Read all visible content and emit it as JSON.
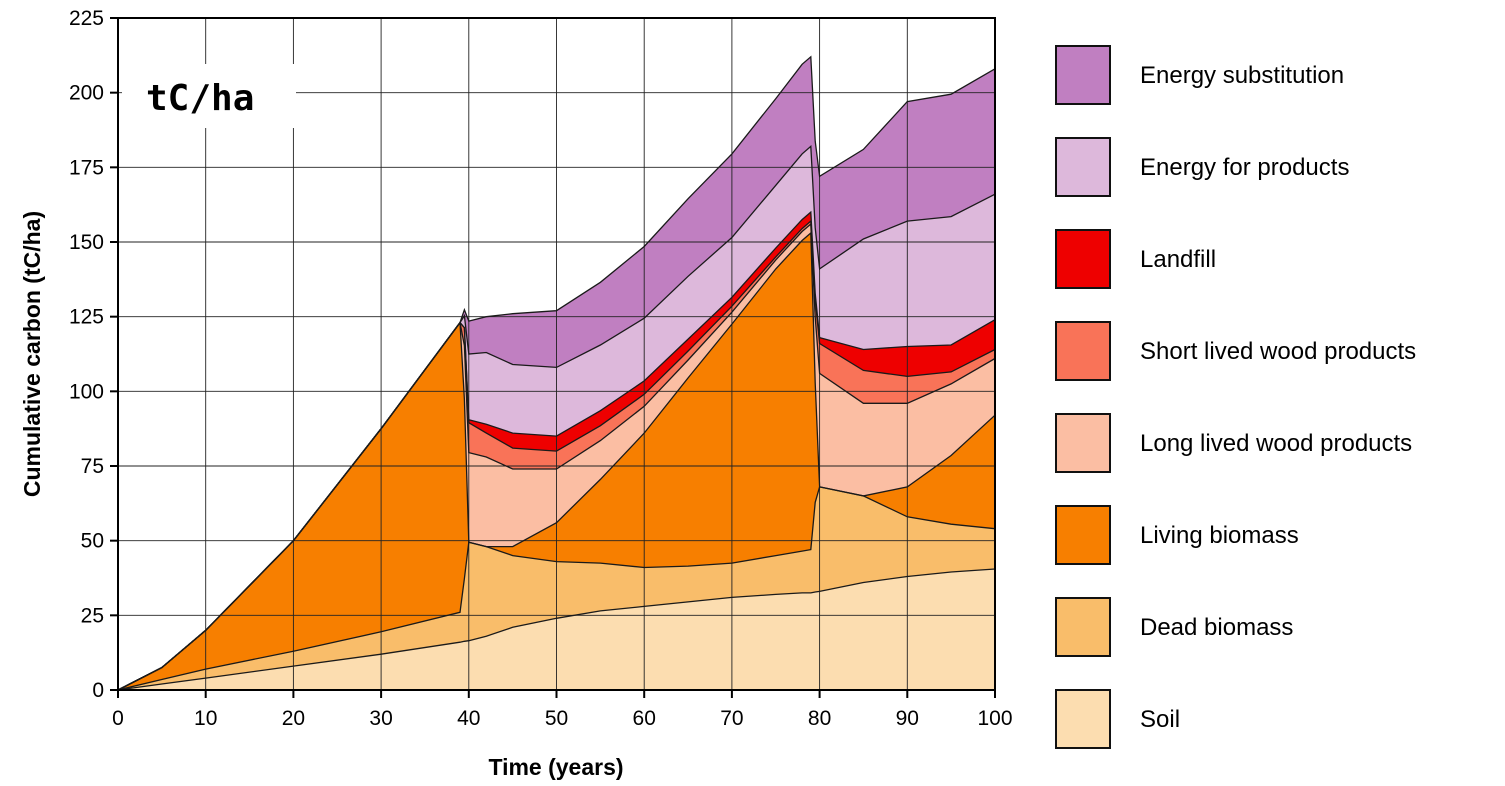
{
  "chart_data": {
    "type": "area",
    "stacked": true,
    "title": "",
    "xlabel": "Time (years)",
    "ylabel": "Cumulative carbon (tC/ha)",
    "unit_label": "tC/ha",
    "xlim": [
      0,
      100
    ],
    "ylim": [
      0,
      225
    ],
    "x_ticks": [
      "0",
      "10",
      "20",
      "30",
      "40",
      "50",
      "60",
      "70",
      "80",
      "90",
      "100"
    ],
    "y_ticks": [
      "0",
      "25",
      "50",
      "75",
      "100",
      "125",
      "150",
      "175",
      "200",
      "225"
    ],
    "grid": true,
    "legend_position": "right",
    "x": [
      0,
      5,
      10,
      20,
      30,
      39,
      39.5,
      40,
      42,
      45,
      50,
      55,
      60,
      65,
      70,
      75,
      78,
      79,
      79.5,
      80,
      85,
      90,
      95,
      100
    ],
    "series": [
      {
        "name": "Soil",
        "color": "#FCDDB0",
        "values": [
          0,
          2,
          4,
          8,
          12,
          16,
          16.3,
          16.5,
          18,
          21,
          24,
          26.5,
          28,
          29.5,
          31,
          32,
          32.5,
          32.5,
          32.8,
          33,
          36,
          38,
          39.5,
          40.5
        ]
      },
      {
        "name": "Dead biomass",
        "color": "#F9BD6A",
        "values": [
          0,
          1.5,
          3,
          5,
          7.5,
          10,
          21,
          33,
          30,
          24,
          19,
          16,
          13,
          12,
          11.5,
          13,
          14,
          14.5,
          30,
          35,
          29,
          20,
          16,
          13.5
        ]
      },
      {
        "name": "Living biomass",
        "color": "#F77F00",
        "values": [
          0,
          4,
          13,
          37,
          68,
          97,
          60,
          0,
          0,
          3,
          13,
          28,
          45,
          63,
          80,
          96,
          104,
          106,
          40,
          0,
          0,
          10,
          23,
          38
        ]
      },
      {
        "name": "Long lived wood products",
        "color": "#FBBEA3",
        "values": [
          0,
          0,
          0,
          0,
          0,
          0,
          18,
          30,
          30,
          26,
          18,
          13,
          9,
          6,
          4,
          3,
          3,
          3,
          22,
          38,
          31,
          28,
          24,
          19
        ]
      },
      {
        "name": "Short lived wood products",
        "color": "#F97358",
        "values": [
          0,
          0,
          0,
          0,
          0,
          0,
          6,
          10,
          8,
          7,
          6,
          5,
          4,
          3,
          2,
          1,
          1,
          1,
          6,
          10,
          11,
          9,
          4,
          3
        ]
      },
      {
        "name": "Landfill",
        "color": "#EE0000",
        "values": [
          0,
          0,
          0,
          0,
          0,
          0,
          0,
          1,
          3,
          5,
          5,
          5,
          4.5,
          4,
          3,
          3,
          3,
          3,
          2,
          2,
          7,
          10,
          9,
          10
        ]
      },
      {
        "name": "Energy for products",
        "color": "#DDB8DB",
        "values": [
          0,
          0,
          0,
          0,
          0,
          0,
          4,
          22,
          24,
          23,
          23,
          22,
          21,
          21,
          20,
          21,
          22,
          22,
          22,
          23,
          37,
          42,
          43,
          42
        ]
      },
      {
        "name": "Energy substitution",
        "color": "#C07FC1",
        "values": [
          0,
          0,
          0,
          0,
          0,
          0,
          2,
          11,
          12,
          17,
          19,
          21,
          24,
          26,
          28,
          29,
          30,
          30,
          29,
          31,
          30,
          40,
          41,
          42
        ]
      }
    ]
  }
}
